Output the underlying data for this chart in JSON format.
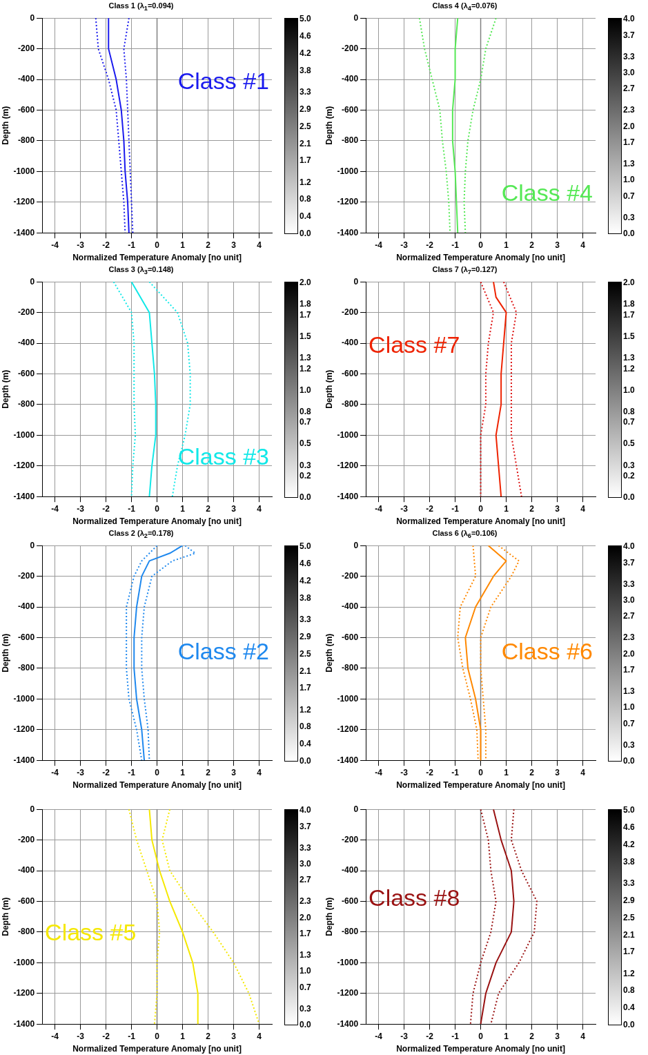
{
  "chart_data": [
    {
      "type": "line",
      "title": "Class 1 (λ$_{1}$=0.094)",
      "xlabel": "Normalized Temperature Anomaly [no unit]",
      "ylabel": "Depth (m)",
      "xlim": [
        -4.5,
        4.5
      ],
      "xticks": [
        -4,
        -3,
        -2,
        -1,
        0,
        1,
        2,
        3,
        4
      ],
      "ylim": [
        -1400,
        0
      ],
      "yticks": [
        -1400,
        -1200,
        -1000,
        -800,
        -600,
        -400,
        -200,
        0
      ],
      "grid": true,
      "legend": false,
      "marker": "none",
      "ref_lines": [
        {
          "axis": "x",
          "value": 0,
          "color": "#808080"
        }
      ],
      "clim": [
        0,
        5
      ],
      "cticks": [
        {
          "value": 0,
          "label": "0.0"
        },
        {
          "value": 0.4,
          "label": "0.4"
        },
        {
          "value": 0.8,
          "label": "0.8"
        },
        {
          "value": 1.2,
          "label": "1.2"
        },
        {
          "value": 1.7,
          "label": "1.7"
        },
        {
          "value": 2.1,
          "label": "2.1"
        },
        {
          "value": 2.5,
          "label": "2.5"
        },
        {
          "value": 2.9,
          "label": "2.9"
        },
        {
          "value": 3.3,
          "label": "3.3"
        },
        {
          "value": 3.8,
          "label": "3.8"
        },
        {
          "value": 4.2,
          "label": "4.2"
        },
        {
          "value": 4.6,
          "label": "4.6"
        },
        {
          "value": 5,
          "label": "5.0"
        }
      ],
      "series": [
        {
          "name": "Class #1",
          "color": "#1a1aee",
          "line_style": "solid",
          "x": [
            -1.9,
            -1.9,
            -1.6,
            -1.4,
            -1.3,
            -1.25,
            -1.15,
            -1.1
          ],
          "values": [
            0,
            -200,
            -400,
            -600,
            -800,
            -1000,
            -1200,
            -1400
          ]
        },
        {
          "color": "#1a1aee",
          "line_style": "dotted",
          "x": [
            -2.4,
            -2.3,
            -1.9,
            -1.6,
            -1.5,
            -1.4,
            -1.3,
            -1.25
          ],
          "values": [
            0,
            -200,
            -400,
            -600,
            -800,
            -1000,
            -1200,
            -1400
          ]
        },
        {
          "color": "#1a1aee",
          "line_style": "dotted",
          "x": [
            -1.1,
            -1.3,
            -1.2,
            -1.15,
            -1.1,
            -1.05,
            -1.0,
            -0.95
          ],
          "values": [
            0,
            -200,
            -400,
            -600,
            -800,
            -1000,
            -1200,
            -1400
          ]
        }
      ]
    },
    {
      "type": "line",
      "title": "Class 4 (λ$_{4}$=0.076)",
      "xlabel": "Normalized Temperature Anomaly [no unit]",
      "ylabel": "Depth (m)",
      "xlim": [
        -4.5,
        4.5
      ],
      "xticks": [
        -4,
        -3,
        -2,
        -1,
        0,
        1,
        2,
        3,
        4
      ],
      "ylim": [
        -1400,
        0
      ],
      "yticks": [
        -1400,
        -1200,
        -1000,
        -800,
        -600,
        -400,
        -200,
        0
      ],
      "grid": true,
      "legend": false,
      "marker": "none",
      "ref_lines": [
        {
          "axis": "x",
          "value": 0,
          "color": "#808080"
        }
      ],
      "clim": [
        0,
        4
      ],
      "cticks": [
        {
          "value": 0,
          "label": "0.0"
        },
        {
          "value": 0.3,
          "label": "0.3"
        },
        {
          "value": 0.7,
          "label": "0.7"
        },
        {
          "value": 1,
          "label": "1.0"
        },
        {
          "value": 1.3,
          "label": "1.3"
        },
        {
          "value": 1.7,
          "label": "1.7"
        },
        {
          "value": 2,
          "label": "2.0"
        },
        {
          "value": 2.3,
          "label": "2.3"
        },
        {
          "value": 2.7,
          "label": "2.7"
        },
        {
          "value": 3,
          "label": "3.0"
        },
        {
          "value": 3.3,
          "label": "3.3"
        },
        {
          "value": 3.7,
          "label": "3.7"
        },
        {
          "value": 4,
          "label": "4.0"
        }
      ],
      "series": [
        {
          "name": "Class #4",
          "color": "#55e855",
          "line_style": "solid",
          "x": [
            -0.9,
            -1.0,
            -1.0,
            -1.1,
            -1.1,
            -1.0,
            -0.95,
            -0.9
          ],
          "values": [
            0,
            -200,
            -400,
            -600,
            -800,
            -1000,
            -1200,
            -1400
          ]
        },
        {
          "color": "#55e855",
          "line_style": "dotted",
          "x": [
            -2.4,
            -2.2,
            -1.9,
            -1.6,
            -1.5,
            -1.35,
            -1.25,
            -1.2
          ],
          "values": [
            0,
            -200,
            -400,
            -600,
            -800,
            -1000,
            -1200,
            -1400
          ]
        },
        {
          "color": "#55e855",
          "line_style": "dotted",
          "x": [
            0.6,
            0.2,
            0.0,
            -0.3,
            -0.5,
            -0.6,
            -0.65,
            -0.6
          ],
          "values": [
            0,
            -200,
            -400,
            -600,
            -800,
            -1000,
            -1200,
            -1400
          ]
        }
      ]
    },
    {
      "type": "line",
      "title": "Class 3 (λ$_{3}$=0.148)",
      "xlabel": "Normalized Temperature Anomaly [no unit]",
      "ylabel": "Depth (m)",
      "xlim": [
        -4.5,
        4.5
      ],
      "xticks": [
        -4,
        -3,
        -2,
        -1,
        0,
        1,
        2,
        3,
        4
      ],
      "ylim": [
        -1400,
        0
      ],
      "yticks": [
        -1400,
        -1200,
        -1000,
        -800,
        -600,
        -400,
        -200,
        0
      ],
      "grid": true,
      "legend": false,
      "marker": "none",
      "ref_lines": [
        {
          "axis": "x",
          "value": 0,
          "color": "#808080"
        }
      ],
      "clim": [
        0,
        2
      ],
      "cticks": [
        {
          "value": 0,
          "label": "0.0"
        },
        {
          "value": 0.2,
          "label": "0.2"
        },
        {
          "value": 0.3,
          "label": "0.3"
        },
        {
          "value": 0.5,
          "label": "0.5"
        },
        {
          "value": 0.7,
          "label": "0.7"
        },
        {
          "value": 0.8,
          "label": "0.8"
        },
        {
          "value": 1,
          "label": "1.0"
        },
        {
          "value": 1.2,
          "label": "1.2"
        },
        {
          "value": 1.3,
          "label": "1.3"
        },
        {
          "value": 1.5,
          "label": "1.5"
        },
        {
          "value": 1.7,
          "label": "1.7"
        },
        {
          "value": 1.8,
          "label": "1.8"
        },
        {
          "value": 2,
          "label": "2.0"
        }
      ],
      "series": [
        {
          "name": "Class #3",
          "color": "#11e8e8",
          "line_style": "solid",
          "x": [
            -1.0,
            -0.3,
            -0.2,
            -0.1,
            -0.05,
            -0.05,
            -0.2,
            -0.3
          ],
          "values": [
            0,
            -200,
            -400,
            -600,
            -800,
            -1000,
            -1200,
            -1400
          ]
        },
        {
          "color": "#11e8e8",
          "line_style": "dotted",
          "x": [
            -1.7,
            -1.0,
            -0.9,
            -0.9,
            -0.9,
            -0.85,
            -0.95,
            -1.0
          ],
          "values": [
            0,
            -200,
            -400,
            -600,
            -800,
            -1000,
            -1200,
            -1400
          ]
        },
        {
          "color": "#11e8e8",
          "line_style": "dotted",
          "x": [
            -0.3,
            0.8,
            1.2,
            1.3,
            1.3,
            1.1,
            0.8,
            0.6
          ],
          "values": [
            0,
            -200,
            -400,
            -600,
            -800,
            -1000,
            -1200,
            -1400
          ]
        }
      ]
    },
    {
      "type": "line",
      "title": "Class 7 (λ$_{7}$=0.127)",
      "xlabel": "Normalized Temperature Anomaly [no unit]",
      "ylabel": "Depth (m)",
      "xlim": [
        -4.5,
        4.5
      ],
      "xticks": [
        -4,
        -3,
        -2,
        -1,
        0,
        1,
        2,
        3,
        4
      ],
      "ylim": [
        -1400,
        0
      ],
      "yticks": [
        -1400,
        -1200,
        -1000,
        -800,
        -600,
        -400,
        -200,
        0
      ],
      "grid": true,
      "legend": false,
      "marker": "none",
      "ref_lines": [
        {
          "axis": "x",
          "value": 0,
          "color": "#808080"
        }
      ],
      "clim": [
        0,
        2
      ],
      "cticks": [
        {
          "value": 0,
          "label": "0.0"
        },
        {
          "value": 0.2,
          "label": "0.2"
        },
        {
          "value": 0.3,
          "label": "0.3"
        },
        {
          "value": 0.5,
          "label": "0.5"
        },
        {
          "value": 0.7,
          "label": "0.7"
        },
        {
          "value": 0.8,
          "label": "0.8"
        },
        {
          "value": 1,
          "label": "1.0"
        },
        {
          "value": 1.2,
          "label": "1.2"
        },
        {
          "value": 1.3,
          "label": "1.3"
        },
        {
          "value": 1.5,
          "label": "1.5"
        },
        {
          "value": 1.7,
          "label": "1.7"
        },
        {
          "value": 1.8,
          "label": "1.8"
        },
        {
          "value": 2,
          "label": "2.0"
        }
      ],
      "series": [
        {
          "name": "Class #7",
          "color": "#ee2200",
          "line_style": "solid",
          "x": [
            0.5,
            0.6,
            1.0,
            0.9,
            0.8,
            0.8,
            0.6,
            0.7,
            0.8
          ],
          "values": [
            0,
            -100,
            -200,
            -400,
            -600,
            -800,
            -1000,
            -1200,
            -1400
          ]
        },
        {
          "color": "#dd1111",
          "line_style": "dotted",
          "x": [
            0.0,
            0.5,
            0.3,
            0.2,
            0.2,
            0.0,
            0.0,
            0.0
          ],
          "values": [
            0,
            -200,
            -400,
            -600,
            -800,
            -1000,
            -1200,
            -1400
          ]
        },
        {
          "color": "#dd1111",
          "line_style": "dotted",
          "x": [
            0.9,
            1.4,
            1.2,
            1.2,
            1.2,
            1.2,
            1.4,
            1.6
          ],
          "values": [
            0,
            -200,
            -400,
            -600,
            -800,
            -1000,
            -1200,
            -1400
          ]
        }
      ]
    },
    {
      "type": "line",
      "title": "Class 2 (λ$_{2}$=0.178)",
      "xlabel": "Normalized Temperature Anomaly [no unit]",
      "ylabel": "Depth (m)",
      "xlim": [
        -4.5,
        4.5
      ],
      "xticks": [
        -4,
        -3,
        -2,
        -1,
        0,
        1,
        2,
        3,
        4
      ],
      "ylim": [
        -1400,
        0
      ],
      "yticks": [
        -1400,
        -1200,
        -1000,
        -800,
        -600,
        -400,
        -200,
        0
      ],
      "grid": true,
      "legend": false,
      "marker": "none",
      "ref_lines": [
        {
          "axis": "x",
          "value": 0,
          "color": "#808080"
        }
      ],
      "clim": [
        0,
        5
      ],
      "cticks": [
        {
          "value": 0,
          "label": "0.0"
        },
        {
          "value": 0.4,
          "label": "0.4"
        },
        {
          "value": 0.8,
          "label": "0.8"
        },
        {
          "value": 1.2,
          "label": "1.2"
        },
        {
          "value": 1.7,
          "label": "1.7"
        },
        {
          "value": 2.1,
          "label": "2.1"
        },
        {
          "value": 2.5,
          "label": "2.5"
        },
        {
          "value": 2.9,
          "label": "2.9"
        },
        {
          "value": 3.3,
          "label": "3.3"
        },
        {
          "value": 3.8,
          "label": "3.8"
        },
        {
          "value": 4.2,
          "label": "4.2"
        },
        {
          "value": 4.6,
          "label": "4.6"
        },
        {
          "value": 5,
          "label": "5.0"
        }
      ],
      "series": [
        {
          "name": "Class #2",
          "color": "#1e88ee",
          "line_style": "solid",
          "x": [
            1.0,
            0.5,
            -0.3,
            -0.6,
            -0.8,
            -0.9,
            -0.9,
            -0.8,
            -0.6,
            -0.5
          ],
          "values": [
            0,
            -50,
            -100,
            -200,
            -400,
            -600,
            -800,
            -1000,
            -1200,
            -1400
          ]
        },
        {
          "color": "#1e88ee",
          "line_style": "dotted",
          "x": [
            0.0,
            -0.6,
            -0.9,
            -1.2,
            -1.2,
            -1.2,
            -1.1,
            -0.8,
            -0.6
          ],
          "values": [
            0,
            -100,
            -200,
            -400,
            -600,
            -800,
            -1000,
            -1200,
            -1400
          ]
        },
        {
          "color": "#1e88ee",
          "line_style": "dotted",
          "x": [
            1.1,
            1.5,
            0.6,
            -0.2,
            -0.5,
            -0.6,
            -0.6,
            -0.5,
            -0.35,
            -0.3
          ],
          "values": [
            0,
            -50,
            -100,
            -200,
            -400,
            -600,
            -800,
            -1000,
            -1200,
            -1400
          ]
        }
      ]
    },
    {
      "type": "line",
      "title": "Class 6 (λ$_{6}$=0.106)",
      "xlabel": "Normalized Temperature Anomaly [no unit]",
      "ylabel": "Depth (m)",
      "xlim": [
        -4.5,
        4.5
      ],
      "xticks": [
        -4,
        -3,
        -2,
        -1,
        0,
        1,
        2,
        3,
        4
      ],
      "ylim": [
        -1400,
        0
      ],
      "yticks": [
        -1400,
        -1200,
        -1000,
        -800,
        -600,
        -400,
        -200,
        0
      ],
      "grid": true,
      "legend": false,
      "marker": "none",
      "ref_lines": [
        {
          "axis": "x",
          "value": 0,
          "color": "#808080"
        }
      ],
      "clim": [
        0,
        4
      ],
      "cticks": [
        {
          "value": 0,
          "label": "0.0"
        },
        {
          "value": 0.3,
          "label": "0.3"
        },
        {
          "value": 0.7,
          "label": "0.7"
        },
        {
          "value": 1,
          "label": "1.0"
        },
        {
          "value": 1.3,
          "label": "1.3"
        },
        {
          "value": 1.7,
          "label": "1.7"
        },
        {
          "value": 2,
          "label": "2.0"
        },
        {
          "value": 2.3,
          "label": "2.3"
        },
        {
          "value": 2.7,
          "label": "2.7"
        },
        {
          "value": 3,
          "label": "3.0"
        },
        {
          "value": 3.3,
          "label": "3.3"
        },
        {
          "value": 3.7,
          "label": "3.7"
        },
        {
          "value": 4,
          "label": "4.0"
        }
      ],
      "series": [
        {
          "name": "Class #6",
          "color": "#ff8800",
          "line_style": "solid",
          "x": [
            0.3,
            1.0,
            0.5,
            -0.2,
            -0.6,
            -0.5,
            -0.2,
            0.0,
            0.0
          ],
          "values": [
            0,
            -100,
            -200,
            -400,
            -600,
            -800,
            -1000,
            -1200,
            -1400
          ]
        },
        {
          "color": "#ff8800",
          "line_style": "dotted",
          "x": [
            -0.3,
            -0.2,
            -0.8,
            -0.9,
            -0.7,
            -0.4,
            -0.15,
            -0.1
          ],
          "values": [
            0,
            -200,
            -400,
            -600,
            -800,
            -1000,
            -1200,
            -1400
          ]
        },
        {
          "color": "#ff8800",
          "line_style": "dotted",
          "x": [
            0.7,
            1.5,
            1.2,
            0.4,
            0.0,
            0.0,
            0.1,
            0.2,
            0.2
          ],
          "values": [
            0,
            -100,
            -200,
            -400,
            -600,
            -800,
            -1000,
            -1200,
            -1400
          ]
        }
      ]
    },
    {
      "type": "line",
      "xlabel": "Normalized Temperature Anomaly [no unit]",
      "ylabel": "Depth (m)",
      "xlim": [
        -4.5,
        4.5
      ],
      "xticks": [
        -4,
        -3,
        -2,
        -1,
        0,
        1,
        2,
        3,
        4
      ],
      "ylim": [
        -1400,
        0
      ],
      "yticks": [
        -1400,
        -1200,
        -1000,
        -800,
        -600,
        -400,
        -200,
        0
      ],
      "grid": true,
      "legend": false,
      "marker": "none",
      "ref_lines": [
        {
          "axis": "x",
          "value": 0,
          "color": "#808080"
        }
      ],
      "clim": [
        0,
        4
      ],
      "cticks": [
        {
          "value": 0,
          "label": "0.0"
        },
        {
          "value": 0.3,
          "label": "0.3"
        },
        {
          "value": 0.7,
          "label": "0.7"
        },
        {
          "value": 1,
          "label": "1.0"
        },
        {
          "value": 1.3,
          "label": "1.3"
        },
        {
          "value": 1.7,
          "label": "1.7"
        },
        {
          "value": 2,
          "label": "2.0"
        },
        {
          "value": 2.3,
          "label": "2.3"
        },
        {
          "value": 2.7,
          "label": "2.7"
        },
        {
          "value": 3,
          "label": "3.0"
        },
        {
          "value": 3.3,
          "label": "3.3"
        },
        {
          "value": 3.7,
          "label": "3.7"
        },
        {
          "value": 4,
          "label": "4.0"
        }
      ],
      "series": [
        {
          "name": "Class #5",
          "color": "#f5e800",
          "line_style": "solid",
          "x": [
            -0.3,
            -0.2,
            0.1,
            0.5,
            1.0,
            1.4,
            1.6,
            1.6
          ],
          "values": [
            0,
            -200,
            -400,
            -600,
            -800,
            -1000,
            -1200,
            -1400
          ]
        },
        {
          "color": "#f5e800",
          "line_style": "dotted",
          "x": [
            -1.1,
            -0.8,
            -0.4,
            0.0,
            0.1,
            0.0,
            0.0,
            -0.1
          ],
          "values": [
            0,
            -200,
            -400,
            -600,
            -800,
            -1000,
            -1200,
            -1400
          ]
        },
        {
          "color": "#f5e800",
          "line_style": "dotted",
          "x": [
            0.5,
            0.2,
            0.5,
            1.3,
            2.2,
            3.0,
            3.6,
            4.0
          ],
          "values": [
            0,
            -200,
            -400,
            -600,
            -800,
            -1000,
            -1200,
            -1400
          ]
        }
      ]
    },
    {
      "type": "line",
      "xlabel": "Normalized Temperature Anomaly [no unit]",
      "ylabel": "Depth (m)",
      "xlim": [
        -4.5,
        4.5
      ],
      "xticks": [
        -4,
        -3,
        -2,
        -1,
        0,
        1,
        2,
        3,
        4
      ],
      "ylim": [
        -1400,
        0
      ],
      "yticks": [
        -1400,
        -1200,
        -1000,
        -800,
        -600,
        -400,
        -200,
        0
      ],
      "grid": true,
      "legend": false,
      "marker": "none",
      "ref_lines": [
        {
          "axis": "x",
          "value": 0,
          "color": "#808080"
        }
      ],
      "clim": [
        0,
        5
      ],
      "cticks": [
        {
          "value": 0,
          "label": "0.0"
        },
        {
          "value": 0.4,
          "label": "0.4"
        },
        {
          "value": 0.8,
          "label": "0.8"
        },
        {
          "value": 1.2,
          "label": "1.2"
        },
        {
          "value": 1.7,
          "label": "1.7"
        },
        {
          "value": 2.1,
          "label": "2.1"
        },
        {
          "value": 2.5,
          "label": "2.5"
        },
        {
          "value": 2.9,
          "label": "2.9"
        },
        {
          "value": 3.3,
          "label": "3.3"
        },
        {
          "value": 3.8,
          "label": "3.8"
        },
        {
          "value": 4.2,
          "label": "4.2"
        },
        {
          "value": 4.6,
          "label": "4.6"
        },
        {
          "value": 5,
          "label": "5.0"
        }
      ],
      "series": [
        {
          "name": "Class #8",
          "color": "#991111",
          "line_style": "solid",
          "x": [
            0.5,
            0.8,
            1.2,
            1.3,
            1.2,
            0.6,
            0.2,
            0.0
          ],
          "values": [
            0,
            -200,
            -400,
            -600,
            -800,
            -1000,
            -1200,
            -1400
          ]
        },
        {
          "color": "#991111",
          "line_style": "dotted",
          "x": [
            0.0,
            0.3,
            0.4,
            0.6,
            0.4,
            0.0,
            -0.3,
            -0.4
          ],
          "values": [
            0,
            -200,
            -400,
            -600,
            -800,
            -1000,
            -1200,
            -1400
          ]
        },
        {
          "color": "#991111",
          "line_style": "dotted",
          "x": [
            1.3,
            1.2,
            1.6,
            2.2,
            2.1,
            1.5,
            0.7,
            0.4
          ],
          "values": [
            0,
            -200,
            -400,
            -600,
            -800,
            -1000,
            -1200,
            -1400
          ]
        }
      ]
    }
  ]
}
